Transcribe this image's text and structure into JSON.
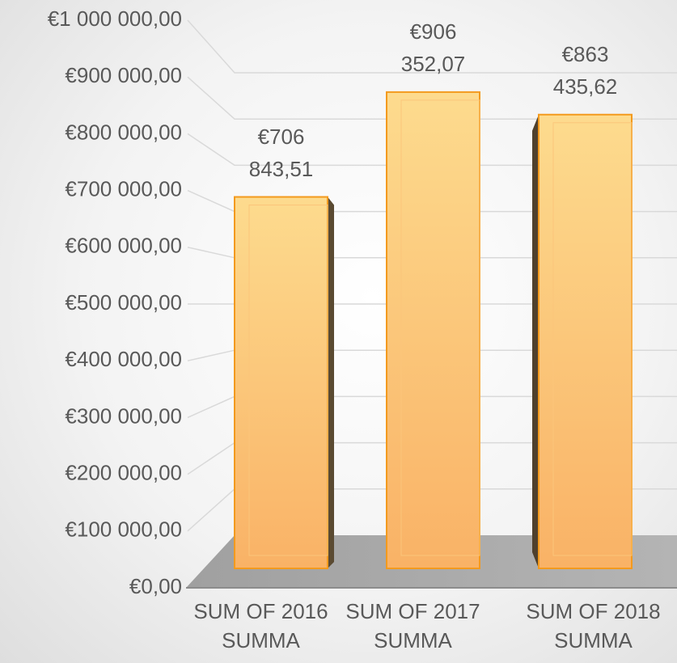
{
  "chart_data": {
    "type": "bar",
    "categories": [
      "SUM OF 2016 SUMMA",
      "SUM OF 2017 SUMMA",
      "SUM OF 2018 SUMMA"
    ],
    "values": [
      706843.51,
      906352.07,
      863435.62
    ],
    "value_labels": [
      "€706 843,51",
      "€906 352,07",
      "€863 435,62"
    ],
    "color": "#f9b266",
    "ylim": [
      0,
      1000000
    ],
    "yticks": [
      {
        "value": 0,
        "label": "€0,00"
      },
      {
        "value": 100000,
        "label": "€100 000,00"
      },
      {
        "value": 200000,
        "label": "€200 000,00"
      },
      {
        "value": 300000,
        "label": "€300 000,00"
      },
      {
        "value": 400000,
        "label": "€400 000,00"
      },
      {
        "value": 500000,
        "label": "€500 000,00"
      },
      {
        "value": 600000,
        "label": "€600 000,00"
      },
      {
        "value": 700000,
        "label": "€700 000,00"
      },
      {
        "value": 800000,
        "label": "€800 000,00"
      },
      {
        "value": 900000,
        "label": "€900 000,00"
      },
      {
        "value": 1000000,
        "label": "€1 000 000,00"
      }
    ],
    "grid": true
  }
}
